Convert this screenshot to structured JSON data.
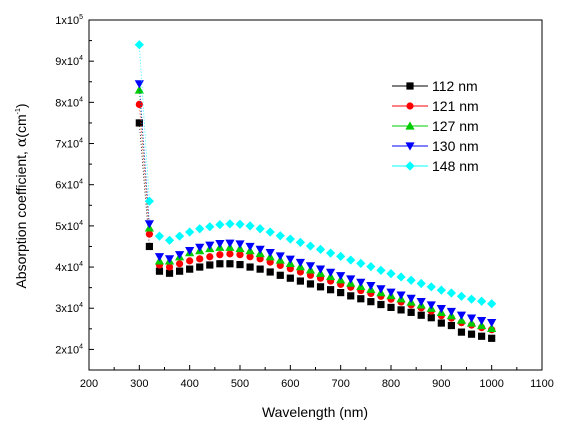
{
  "chart_data": {
    "type": "scatter",
    "xlabel": "Wavelength (nm)",
    "ylabel_parts": {
      "pre": "Absorption coefficient, ",
      "symbol": "α",
      "unit_pre": "(cm",
      "unit_exp": "-1",
      "unit_post": ")"
    },
    "xlim": [
      200,
      1100
    ],
    "ylim": [
      15000,
      100000
    ],
    "x_ticks": [
      "200",
      "300",
      "400",
      "500",
      "600",
      "700",
      "800",
      "900",
      "1000",
      "1100"
    ],
    "y_ticks": [
      {
        "mant": "2x10",
        "exp": "4",
        "value": 20000
      },
      {
        "mant": "3x10",
        "exp": "4",
        "value": 30000
      },
      {
        "mant": "4x10",
        "exp": "4",
        "value": 40000
      },
      {
        "mant": "5x10",
        "exp": "4",
        "value": 50000
      },
      {
        "mant": "6x10",
        "exp": "4",
        "value": 60000
      },
      {
        "mant": "7x10",
        "exp": "4",
        "value": 70000
      },
      {
        "mant": "8x10",
        "exp": "4",
        "value": 80000
      },
      {
        "mant": "9x10",
        "exp": "4",
        "value": 90000
      },
      {
        "mant": "1x10",
        "exp": "5",
        "value": 100000
      }
    ],
    "grid": false,
    "legend_position": "top-right",
    "x": [
      300,
      320,
      340,
      360,
      380,
      400,
      420,
      440,
      460,
      480,
      500,
      520,
      540,
      560,
      580,
      600,
      620,
      640,
      660,
      680,
      700,
      720,
      740,
      760,
      780,
      800,
      820,
      840,
      860,
      880,
      900,
      920,
      940,
      960,
      980,
      1000
    ],
    "series": [
      {
        "name": "112 nm",
        "marker": "square",
        "color": "#000000",
        "values": [
          75000,
          45000,
          39000,
          38500,
          39000,
          39500,
          40000,
          40500,
          40800,
          40800,
          40600,
          40000,
          39500,
          38800,
          38000,
          37300,
          36600,
          35900,
          35200,
          34500,
          33800,
          33000,
          32300,
          31600,
          30900,
          30200,
          29600,
          29000,
          28300,
          27700,
          26400,
          25800,
          24200,
          23700,
          23200,
          22700
        ]
      },
      {
        "name": "121 nm",
        "marker": "circle",
        "color": "#ff0000",
        "values": [
          79500,
          48000,
          40500,
          40000,
          40800,
          41500,
          42000,
          42500,
          43000,
          43200,
          43000,
          42500,
          42000,
          41200,
          40400,
          39600,
          38800,
          38000,
          37300,
          36600,
          35800,
          35100,
          34300,
          33600,
          32900,
          32200,
          31500,
          30800,
          30100,
          29300,
          28200,
          27600,
          26500,
          25900,
          25300,
          24800
        ]
      },
      {
        "name": "127 nm",
        "marker": "triangle-up",
        "color": "#00cc00",
        "values": [
          83000,
          49500,
          41500,
          41500,
          42500,
          43500,
          44000,
          44500,
          44800,
          44800,
          44500,
          44000,
          43300,
          42500,
          41700,
          40900,
          40100,
          39300,
          38500,
          37700,
          36900,
          36100,
          35300,
          34600,
          33800,
          33100,
          32300,
          31500,
          30800,
          30000,
          29000,
          28200,
          27100,
          26400,
          25800,
          25100
        ]
      },
      {
        "name": "130 nm",
        "marker": "triangle-down",
        "color": "#0000ff",
        "values": [
          84500,
          50500,
          42500,
          42000,
          43000,
          44000,
          44800,
          45300,
          45700,
          45800,
          45600,
          45000,
          44300,
          43500,
          42700,
          41900,
          41100,
          40300,
          39500,
          38700,
          37900,
          37100,
          36300,
          35500,
          34700,
          33900,
          33200,
          32400,
          31600,
          30800,
          29900,
          29200,
          28300,
          27600,
          27000,
          26500
        ]
      },
      {
        "name": "148 nm",
        "marker": "diamond",
        "color": "#00ffff",
        "values": [
          94000,
          56000,
          47500,
          46500,
          47500,
          48500,
          49300,
          49800,
          50300,
          50500,
          50400,
          50000,
          49300,
          48500,
          47600,
          46800,
          46000,
          45100,
          44300,
          43400,
          42600,
          41700,
          40900,
          40100,
          39200,
          38400,
          37600,
          36800,
          36000,
          35200,
          34400,
          33700,
          32900,
          32200,
          31700,
          31100
        ]
      }
    ]
  }
}
